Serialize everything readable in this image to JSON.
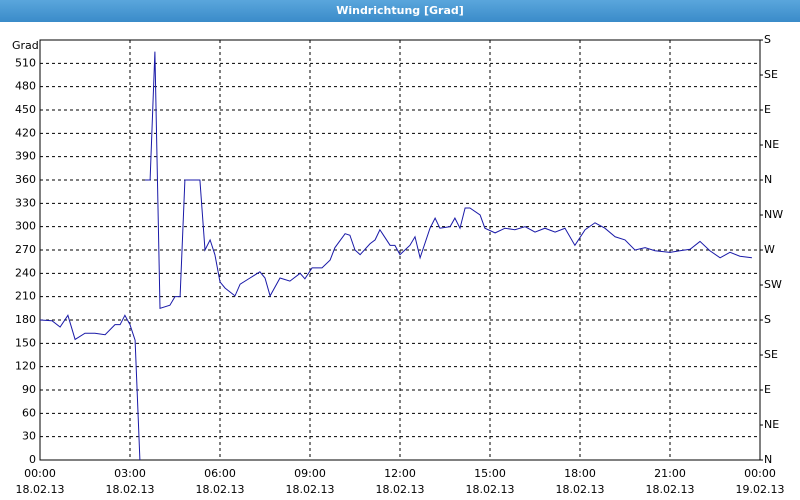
{
  "chart_data": {
    "type": "line",
    "title": "Windrichtung [Grad]",
    "y_label": "Grad",
    "x": [
      0,
      0.4,
      0.67,
      0.93,
      1.17,
      1.5,
      1.83,
      2.17,
      2.5,
      2.67,
      2.83,
      3.0,
      3.17,
      3.33,
      3.4,
      3.5,
      3.67,
      3.83,
      4.0,
      4.33,
      4.5,
      4.67,
      4.83,
      5.33,
      5.5,
      5.67,
      5.83,
      6.0,
      6.17,
      6.5,
      6.67,
      7.0,
      7.33,
      7.5,
      7.67,
      8.0,
      8.33,
      8.67,
      8.83,
      9.07,
      9.4,
      9.67,
      9.83,
      10.17,
      10.33,
      10.5,
      10.67,
      11.0,
      11.17,
      11.33,
      11.67,
      11.83,
      12.0,
      12.33,
      12.5,
      12.67,
      13.0,
      13.17,
      13.33,
      13.67,
      13.83,
      14.0,
      14.17,
      14.33,
      14.67,
      14.83,
      15.17,
      15.5,
      15.83,
      16.17,
      16.5,
      16.83,
      17.17,
      17.5,
      17.83,
      18.17,
      18.5,
      18.83,
      19.17,
      19.5,
      19.83,
      20.17,
      20.5,
      21.0,
      21.33,
      21.67,
      22.0,
      22.33,
      22.67,
      23.0,
      23.33,
      23.73
    ],
    "series": [
      {
        "name": "Windrichtung",
        "color": "#1a1aa8",
        "values": [
          180,
          179,
          171,
          186,
          155,
          163,
          163,
          161,
          174,
          174,
          186,
          174,
          154,
          0,
          null,
          360,
          360,
          525,
          195,
          199,
          210,
          210,
          360,
          360,
          270,
          283,
          264,
          229,
          221,
          211,
          226,
          234,
          242,
          234,
          211,
          234,
          230,
          240,
          233,
          247,
          247,
          257,
          273,
          291,
          289,
          270,
          264,
          278,
          283,
          296,
          276,
          276,
          264,
          276,
          287,
          260,
          298,
          311,
          298,
          300,
          311,
          298,
          324,
          324,
          315,
          298,
          292,
          298,
          296,
          300,
          293,
          298,
          293,
          298,
          276,
          296,
          305,
          298,
          287,
          283,
          270,
          273,
          269,
          267,
          269,
          271,
          281,
          269,
          260,
          267,
          262,
          260
        ]
      }
    ],
    "xlim": [
      0,
      24
    ],
    "xticks": [
      {
        "value": 0,
        "label": "00:00"
      },
      {
        "value": 3,
        "label": "03:00"
      },
      {
        "value": 6,
        "label": "06:00"
      },
      {
        "value": 9,
        "label": "09:00"
      },
      {
        "value": 12,
        "label": "12:00"
      },
      {
        "value": 15,
        "label": "15:00"
      },
      {
        "value": 18,
        "label": "18:00"
      },
      {
        "value": 21,
        "label": "21:00"
      },
      {
        "value": 24,
        "label": "00:00"
      }
    ],
    "xtick_dates": [
      "18.02.13",
      "18.02.13",
      "18.02.13",
      "18.02.13",
      "18.02.13",
      "18.02.13",
      "18.02.13",
      "18.02.13",
      "19.02.13"
    ],
    "ylim": [
      0,
      540
    ],
    "yticks": [
      0,
      30,
      60,
      90,
      120,
      150,
      180,
      210,
      240,
      270,
      300,
      330,
      360,
      390,
      420,
      450,
      480,
      510
    ],
    "y2lim": [
      0,
      540
    ],
    "y2ticks": [
      {
        "value": 0,
        "label": "N"
      },
      {
        "value": 45,
        "label": "NE"
      },
      {
        "value": 90,
        "label": "E"
      },
      {
        "value": 135,
        "label": "SE"
      },
      {
        "value": 180,
        "label": "S"
      },
      {
        "value": 225,
        "label": "SW"
      },
      {
        "value": 270,
        "label": "W"
      },
      {
        "value": 315,
        "label": "NW"
      },
      {
        "value": 360,
        "label": "N"
      },
      {
        "value": 405,
        "label": "NE"
      },
      {
        "value": 450,
        "label": "E"
      },
      {
        "value": 495,
        "label": "SE"
      },
      {
        "value": 540,
        "label": "S"
      }
    ],
    "grid": true
  }
}
